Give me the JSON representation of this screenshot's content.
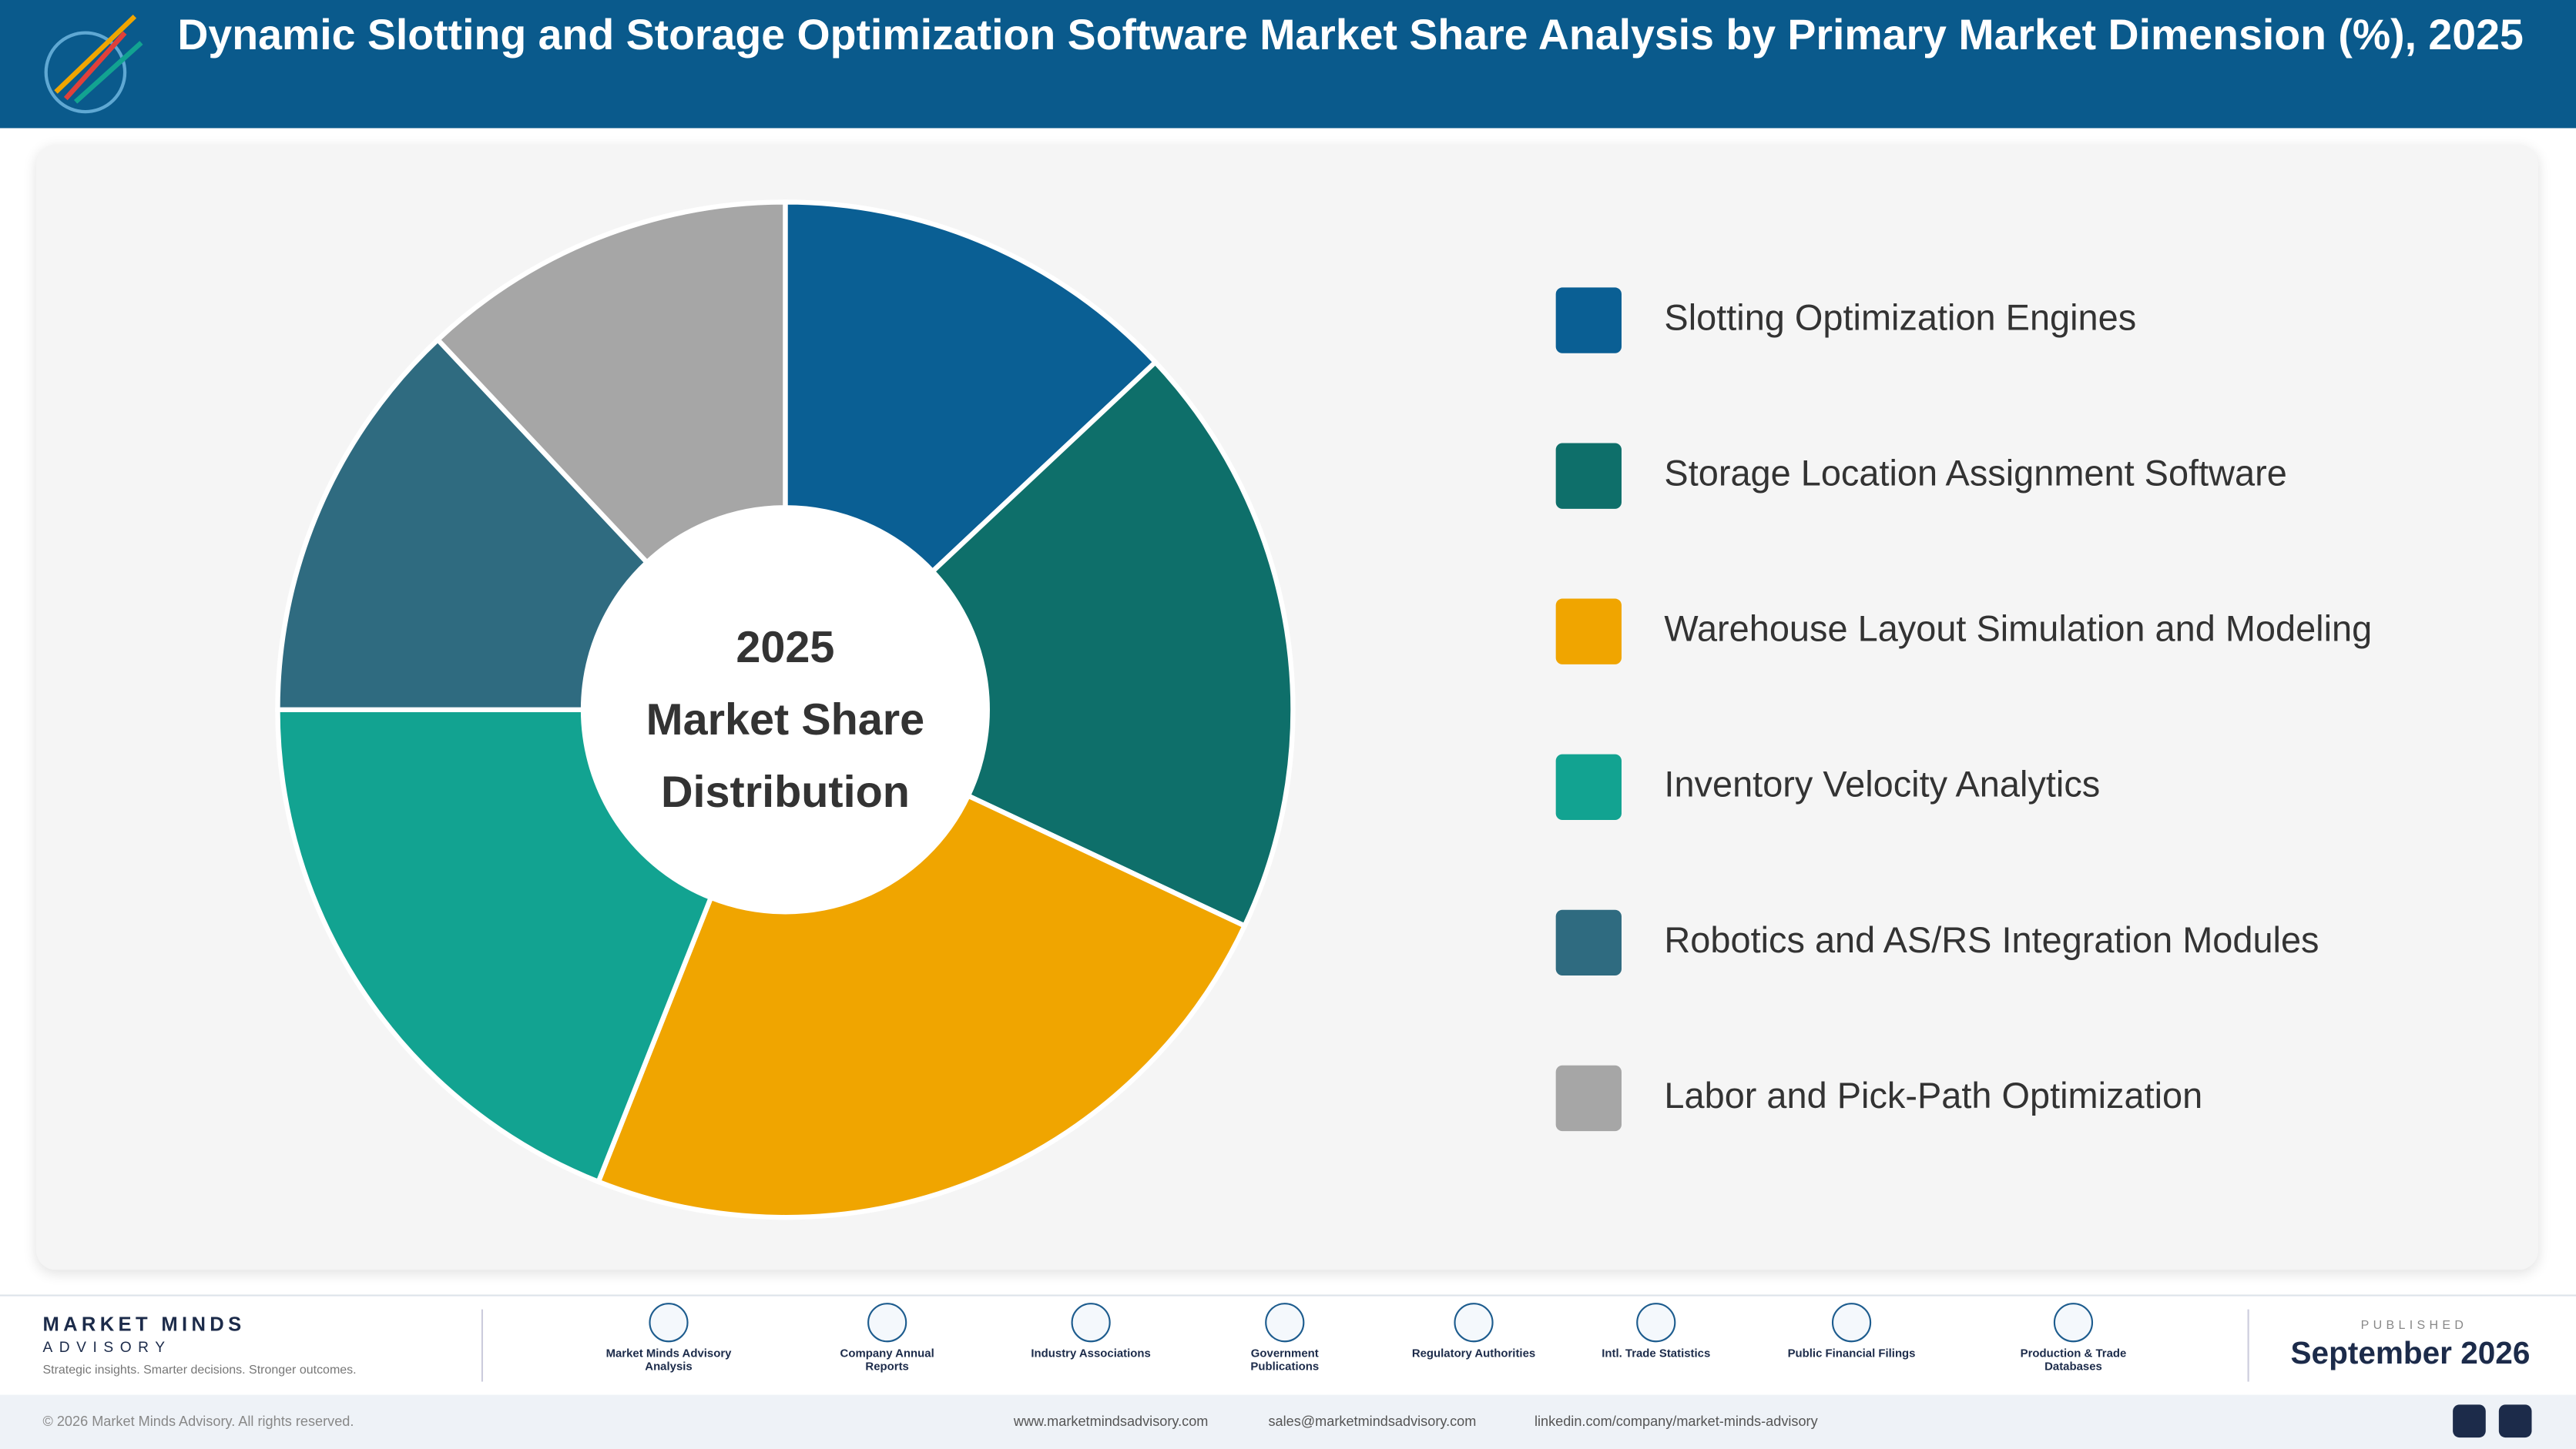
{
  "header": {
    "title": "Dynamic Slotting and Storage Optimization Software Market Share Analysis by Primary Market Dimension (%), 2025"
  },
  "chart_data": {
    "type": "pie",
    "center_label": [
      "2025",
      "Market Share",
      "Distribution"
    ],
    "categories": [
      "Slotting Optimization Engines",
      "Storage Location Assignment Software",
      "Warehouse Layout Simulation and Modeling",
      "Inventory Velocity Analytics",
      "Robotics and AS/RS Integration Modules",
      "Labor and Pick-Path Optimization"
    ],
    "values": [
      13,
      19,
      24,
      19,
      13,
      12
    ],
    "colors": [
      "#0a5f94",
      "#0e6f6a",
      "#f0a500",
      "#12a391",
      "#2f6b80",
      "#a6a6a6"
    ]
  },
  "footer": {
    "brand": "MARKET MINDS",
    "brand_sub": "ADVISORY",
    "tagline": "Strategic insights. Smarter decisions. Stronger outcomes.",
    "sources": [
      "Market Minds Advisory Analysis",
      "Company Annual Reports",
      "Industry Associations",
      "Government Publications",
      "Regulatory Authorities",
      "Intl. Trade Statistics",
      "Public Financial Filings",
      "Production & Trade Databases"
    ],
    "published_label": "PUBLISHED",
    "published": "September 2026",
    "copyright": "© 2026 Market Minds Advisory. All rights reserved.",
    "website": "www.marketmindsadvisory.com",
    "email": "sales@marketmindsadvisory.com",
    "linkedin": "linkedin.com/company/market-minds-advisory"
  }
}
